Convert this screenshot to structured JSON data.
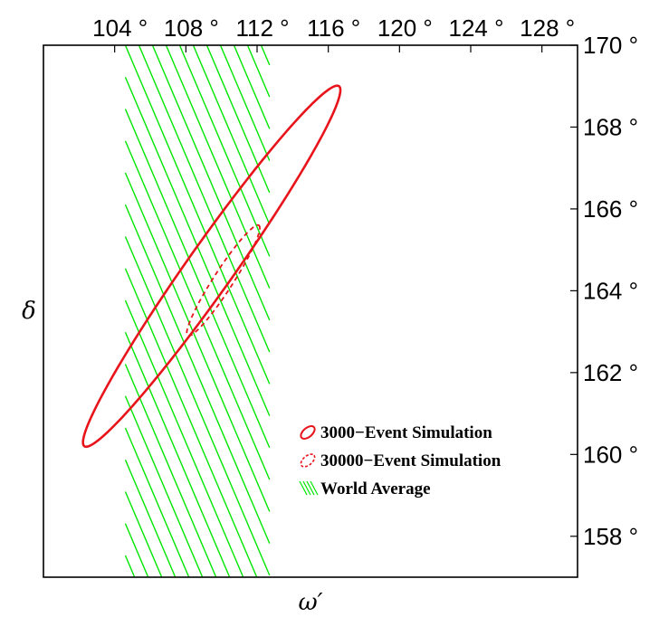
{
  "chart_data": {
    "type": "contour",
    "xlabel": "ω′",
    "ylabel": "δ",
    "xlim": [
      100,
      130
    ],
    "ylim": [
      157,
      170
    ],
    "x_ticks": [
      104,
      108,
      112,
      116,
      120,
      124,
      128
    ],
    "x_tick_labels": [
      "104 °",
      "108 °",
      "112 °",
      "116 °",
      "120 °",
      "124 °",
      "128 °"
    ],
    "y_ticks": [
      158,
      160,
      162,
      164,
      166,
      168,
      170
    ],
    "y_tick_labels": [
      "158 °",
      "160 °",
      "162 °",
      "164 °",
      "166 °",
      "168 °",
      "170 °"
    ],
    "x_axis_position": "top",
    "y_axis_position": "right",
    "grid": false,
    "legend_position": "bottom-right",
    "series": [
      {
        "name": "3000−Event Simulation",
        "kind": "ellipse",
        "style": "solid",
        "color": "#e8141b",
        "center": [
          109.4,
          164.6
        ],
        "endpoints": [
          [
            102.3,
            160.2
          ],
          [
            116.6,
            169.0
          ]
        ],
        "minor_half_width_x": 1.6
      },
      {
        "name": "30000−Event Simulation",
        "kind": "ellipse",
        "style": "dashed",
        "color": "#e8141b",
        "center": [
          110.1,
          164.3
        ],
        "endpoints": [
          [
            108.1,
            162.9
          ],
          [
            112.1,
            165.6
          ]
        ],
        "minor_half_width_x": 0.65
      },
      {
        "name": "World Average",
        "kind": "band",
        "style": "hatched",
        "color": "#00e600",
        "x_range": [
          104.6,
          112.7
        ]
      }
    ]
  }
}
